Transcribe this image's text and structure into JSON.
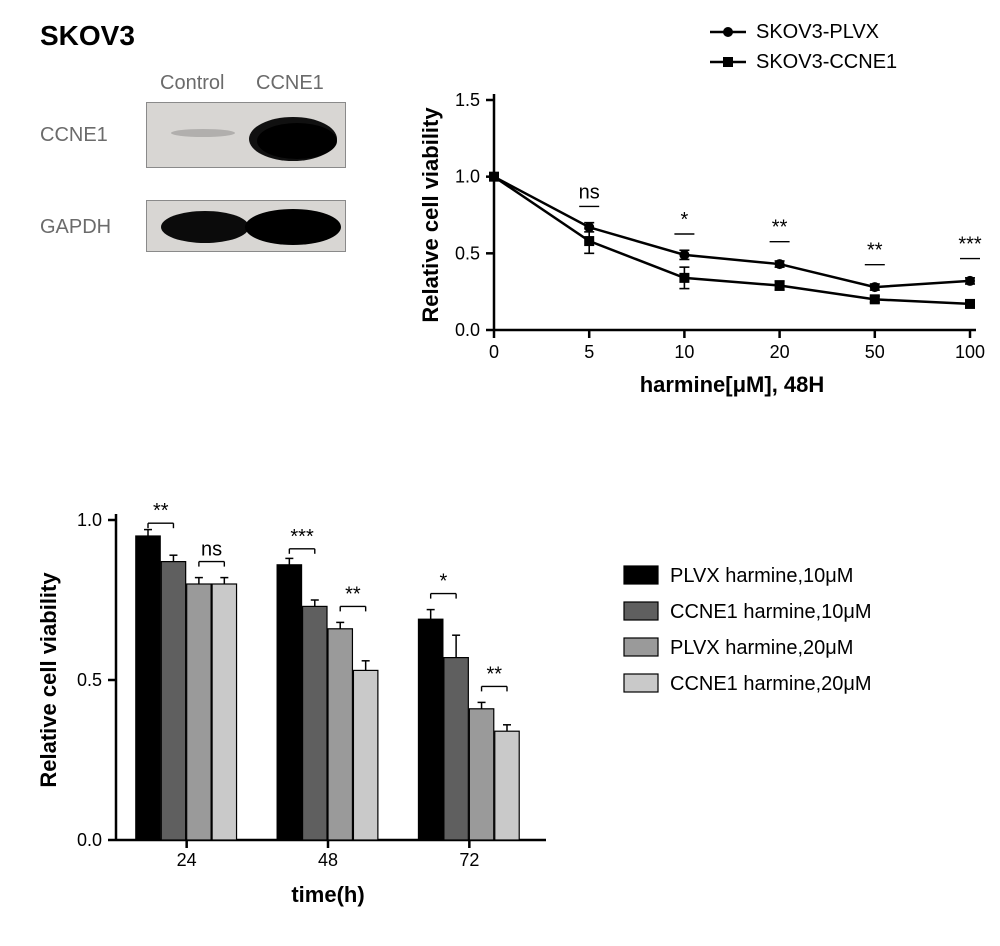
{
  "colors": {
    "black": "#000000",
    "dark_gray": "#5f5f5f",
    "mid_gray": "#9a9a9a",
    "light_gray": "#c9c9c9",
    "grid": "#000000",
    "bg": "#ffffff",
    "blot_dark": "#1a1a1a",
    "blot_bg": "#d8d6d3",
    "blot_label": "#6b6b6b"
  },
  "western": {
    "title": "SKOV3",
    "title_fontsize": 28,
    "title_weight": "bold",
    "lane_labels": [
      "Control",
      "CCNE1"
    ],
    "lane_label_color": "#6b6b6b",
    "lane_label_fontsize": 20,
    "rows": [
      {
        "label": "CCNE1",
        "intensities": [
          0.05,
          0.95
        ]
      },
      {
        "label": "GAPDH",
        "intensities": [
          0.85,
          0.95
        ]
      }
    ],
    "row_label_fontsize": 20,
    "row_label_color": "#6b6b6b"
  },
  "line_chart": {
    "type": "line",
    "ylabel": "Relative cell viability",
    "xlabel": "harmine[μM], 48H",
    "label_fontsize": 22,
    "label_weight": "bold",
    "ylim": [
      0.0,
      1.5
    ],
    "yticks": [
      0.0,
      0.5,
      1.0,
      1.5
    ],
    "x_categories": [
      "0",
      "5",
      "10",
      "20",
      "50",
      "100"
    ],
    "tick_fontsize": 18,
    "axis_color": "#000000",
    "line_width": 2.5,
    "marker_size": 8,
    "series": [
      {
        "name": "SKOV3-PLVX",
        "marker": "circle",
        "color": "#000000",
        "y": [
          1.0,
          0.67,
          0.49,
          0.43,
          0.28,
          0.32
        ],
        "err": [
          0.0,
          0.03,
          0.03,
          0.02,
          0.02,
          0.02
        ]
      },
      {
        "name": "SKOV3-CCNE1",
        "marker": "square",
        "color": "#000000",
        "y": [
          1.0,
          0.58,
          0.34,
          0.29,
          0.2,
          0.17
        ],
        "err": [
          0.0,
          0.08,
          0.07,
          0.03,
          0.02,
          0.02
        ]
      }
    ],
    "annotations": [
      {
        "x_idx": 1,
        "text": "ns",
        "y": 0.78
      },
      {
        "x_idx": 2,
        "text": "*",
        "y": 0.6
      },
      {
        "x_idx": 3,
        "text": "**",
        "y": 0.55
      },
      {
        "x_idx": 4,
        "text": "**",
        "y": 0.4
      },
      {
        "x_idx": 5,
        "text": "***",
        "y": 0.44
      }
    ],
    "annotation_fontsize": 20,
    "legend_fontsize": 20
  },
  "bar_chart": {
    "type": "bar",
    "ylabel": "Relative cell viability",
    "xlabel": "time(h)",
    "label_fontsize": 22,
    "label_weight": "bold",
    "ylim": [
      0.0,
      1.0
    ],
    "yticks": [
      0.0,
      0.5,
      1.0
    ],
    "x_categories": [
      "24",
      "48",
      "72"
    ],
    "tick_fontsize": 18,
    "bar_colors": [
      "#000000",
      "#5f5f5f",
      "#9a9a9a",
      "#c9c9c9"
    ],
    "bar_border": "#000000",
    "bar_width": 0.18,
    "group_gap": 0.28,
    "series_names": [
      "PLVX harmine,10μM",
      "CCNE1 harmine,10μM",
      "PLVX harmine,20μM",
      "CCNE1 harmine,20μM"
    ],
    "legend_fontsize": 20,
    "data": [
      {
        "values": [
          0.95,
          0.87,
          0.8,
          0.8
        ],
        "err": [
          0.02,
          0.02,
          0.02,
          0.02
        ],
        "sig": [
          {
            "between": [
              0,
              1
            ],
            "text": "**",
            "y": 0.99
          },
          {
            "between": [
              2,
              3
            ],
            "text": "ns",
            "y": 0.87
          }
        ]
      },
      {
        "values": [
          0.86,
          0.73,
          0.66,
          0.53
        ],
        "err": [
          0.02,
          0.02,
          0.02,
          0.03
        ],
        "sig": [
          {
            "between": [
              0,
              1
            ],
            "text": "***",
            "y": 0.91
          },
          {
            "between": [
              2,
              3
            ],
            "text": "**",
            "y": 0.73
          }
        ]
      },
      {
        "values": [
          0.69,
          0.57,
          0.41,
          0.34
        ],
        "err": [
          0.03,
          0.07,
          0.02,
          0.02
        ],
        "sig": [
          {
            "between": [
              0,
              1
            ],
            "text": "*",
            "y": 0.77
          },
          {
            "between": [
              2,
              3
            ],
            "text": "**",
            "y": 0.48
          }
        ]
      }
    ],
    "annotation_fontsize": 20
  }
}
